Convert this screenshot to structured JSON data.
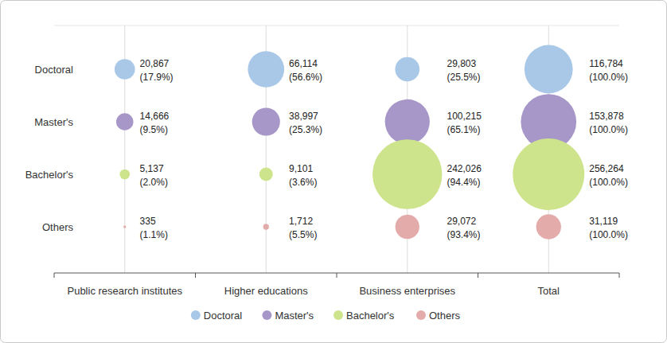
{
  "chart_data": {
    "type": "bubble",
    "categories": [
      "Public research institutes",
      "Higher educations",
      "Business enterprises",
      "Total"
    ],
    "series": [
      {
        "name": "Doctoral",
        "color": "#a9c8e8",
        "values": [
          20867,
          66114,
          29803,
          116784
        ],
        "value_labels": [
          "20,867",
          "66,114",
          "29,803",
          "116,784"
        ],
        "shares": [
          17.9,
          56.6,
          25.5,
          100.0
        ],
        "share_labels": [
          "(17.9%)",
          "(56.6%)",
          "(25.5%)",
          "(100.0%)"
        ]
      },
      {
        "name": "Master's",
        "color": "#a797c8",
        "values": [
          14666,
          38997,
          100215,
          153878
        ],
        "value_labels": [
          "14,666",
          "38,997",
          "100,215",
          "153,878"
        ],
        "shares": [
          9.5,
          25.3,
          65.1,
          100.0
        ],
        "share_labels": [
          "(9.5%)",
          "(25.3%)",
          "(65.1%)",
          "(100.0%)"
        ]
      },
      {
        "name": "Bachelor's",
        "color": "#cde48c",
        "values": [
          5137,
          9101,
          242026,
          256264
        ],
        "value_labels": [
          "5,137",
          "9,101",
          "242,026",
          "256,264"
        ],
        "shares": [
          2.0,
          3.6,
          94.4,
          100.0
        ],
        "share_labels": [
          "(2.0%)",
          "(3.6%)",
          "(94.4%)",
          "(100.0%)"
        ]
      },
      {
        "name": "Others",
        "color": "#e3abaa",
        "values": [
          335,
          1712,
          29072,
          31119
        ],
        "value_labels": [
          "335",
          "1,712",
          "29,072",
          "31,119"
        ],
        "shares": [
          1.1,
          5.5,
          93.4,
          100.0
        ],
        "share_labels": [
          "(1.1%)",
          "(5.5%)",
          "(93.4%)",
          "(100.0%)"
        ]
      }
    ],
    "data_labels": true,
    "legend": "bottom"
  }
}
